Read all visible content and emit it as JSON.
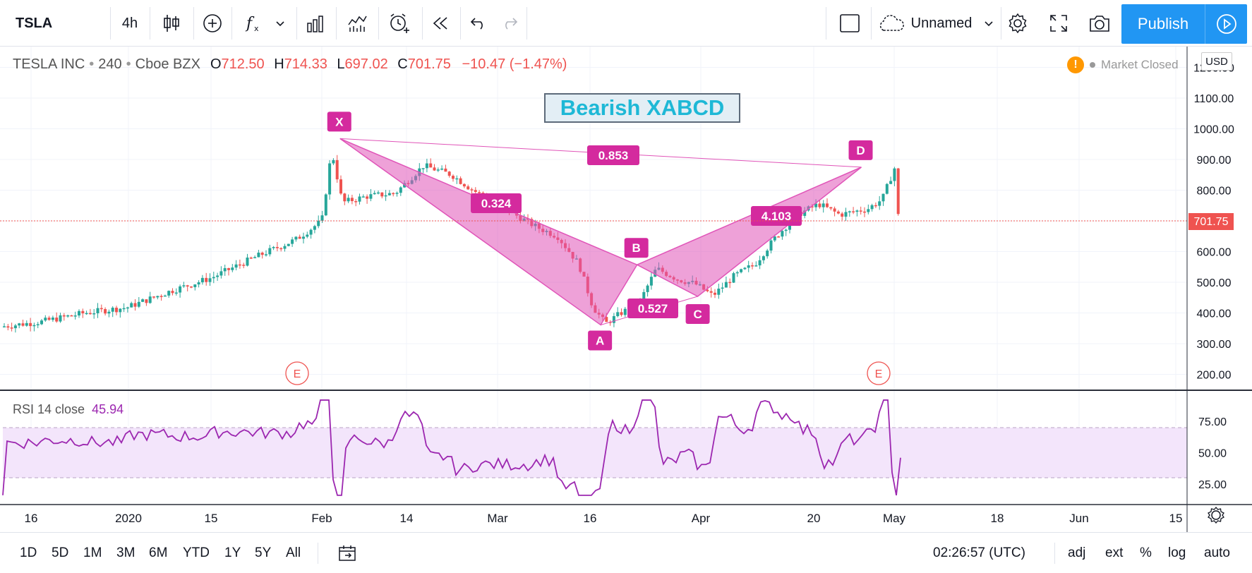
{
  "toolbar": {
    "symbol": "TSLA",
    "interval": "4h",
    "layout_name": "Unnamed",
    "publish_label": "Publish",
    "icons": [
      "candles-icon",
      "add-symbol-icon",
      "indicators-icon",
      "chevron-down-icon",
      "bar-chart-icon",
      "templates-icon",
      "alert-icon",
      "replay-icon",
      "undo-icon",
      "redo-icon",
      "layout-icon",
      "cloud-icon",
      "settings-icon",
      "fullscreen-icon",
      "camera-icon",
      "play-icon"
    ]
  },
  "legend": {
    "name": "TESLA INC",
    "interval": "240",
    "exchange": "Cboe BZX",
    "open_label": "O",
    "open": "712.50",
    "high_label": "H",
    "high": "714.33",
    "low_label": "L",
    "low": "697.02",
    "close_label": "C",
    "close": "701.75",
    "change": "−10.47 (−1.47%)",
    "market_status": "Market Closed",
    "currency": "USD"
  },
  "pattern": {
    "title": "Bearish XABCD",
    "points": [
      "X",
      "A",
      "B",
      "C",
      "D"
    ],
    "ratios": [
      "0.853",
      "0.324",
      "0.527",
      "4.103"
    ],
    "earnings": [
      "E",
      "E"
    ]
  },
  "rsi": {
    "label": "RSI 14 close",
    "value": "45.94"
  },
  "chart_data": {
    "type": "candlestick",
    "price_axis": [
      "1200.00",
      "1100.00",
      "1000.00",
      "900.00",
      "800.00",
      "700.00",
      "600.00",
      "500.00",
      "400.00",
      "300.00",
      "200.00"
    ],
    "last_price": "701.75",
    "rsi_axis": [
      "75.00",
      "50.00",
      "25.00"
    ],
    "time_axis": [
      "16",
      "2020",
      "15",
      "Feb",
      "14",
      "Mar",
      "16",
      "Apr",
      "20",
      "May",
      "18",
      "Jun",
      "15"
    ],
    "xabcd": [
      {
        "label": "X",
        "date": "2020-02-04",
        "price": 968
      },
      {
        "label": "A",
        "date": "2020-03-18",
        "price": 361
      },
      {
        "label": "B",
        "date": "2020-03-24",
        "price": 557
      },
      {
        "label": "C",
        "date": "2020-04-03",
        "price": 454
      },
      {
        "label": "D",
        "date": "2020-04-30",
        "price": 875
      }
    ],
    "colors": {
      "up": "#26a69a",
      "down": "#ef5350",
      "pattern": "#e054b8",
      "rsi": "#9c27b0"
    }
  },
  "timeframes": [
    "1D",
    "5D",
    "1M",
    "3M",
    "6M",
    "YTD",
    "1Y",
    "5Y",
    "All"
  ],
  "bottom_right": {
    "clock": "02:26:57 (UTC)",
    "adj": "adj",
    "ext": "ext",
    "percent": "%",
    "log": "log",
    "auto": "auto"
  }
}
